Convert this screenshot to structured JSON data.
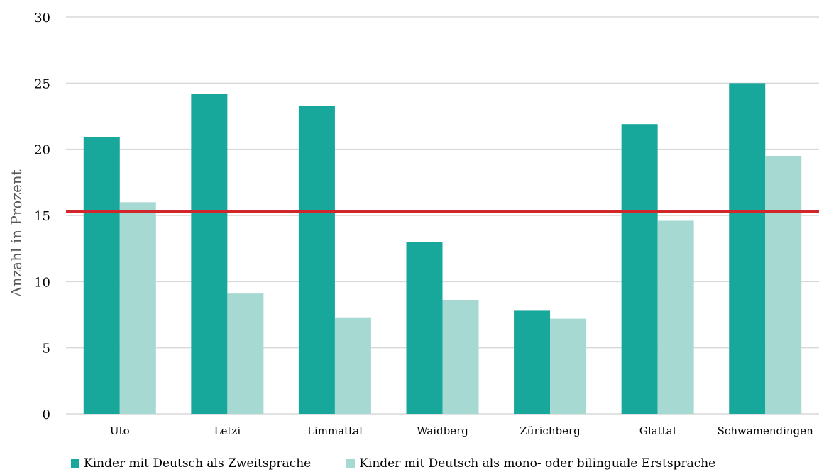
{
  "chart_data": {
    "type": "bar",
    "categories": [
      "Uto",
      "Letzi",
      "Limmattal",
      "Waidberg",
      "Zürichberg",
      "Glattal",
      "Schwamendingen"
    ],
    "series": [
      {
        "name": "Kinder mit Deutsch als Zweitsprache",
        "color": "#17A89B",
        "values": [
          20.9,
          24.2,
          23.3,
          13.0,
          7.8,
          21.9,
          25.0
        ]
      },
      {
        "name": "Kinder mit Deutsch als mono- oder bilinguale Erstsprache",
        "color": "#A5D9D2",
        "values": [
          16.0,
          9.1,
          7.3,
          8.6,
          7.2,
          14.6,
          19.5
        ]
      }
    ],
    "reference_line": {
      "value": 15.3,
      "color": "#D0262C"
    },
    "ylabel": "Anzahl in Prozent",
    "xlabel": "",
    "title": "",
    "ylim": [
      0,
      30
    ],
    "yticks": [
      0,
      5,
      10,
      15,
      20,
      25,
      30
    ],
    "grid": true,
    "legend_position": "bottom"
  }
}
